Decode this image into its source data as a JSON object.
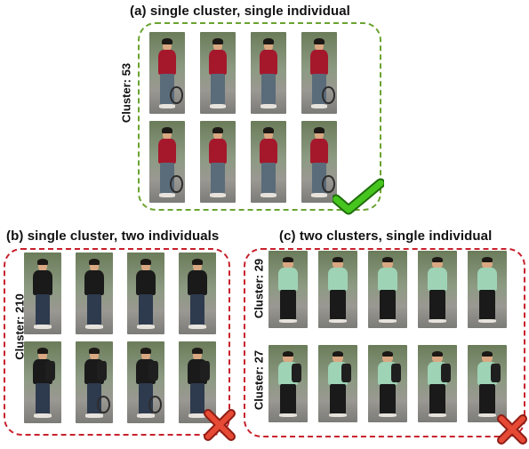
{
  "panels": [
    {
      "title": "(a) single cluster, single individual",
      "status": "correct",
      "rows": [
        {
          "cluster_label": "Cluster: 53",
          "count": 4
        },
        {
          "count": 4
        }
      ],
      "colors": {
        "border": "#6aa331",
        "torso": "#a5182c",
        "legs": "#5a6b7a"
      }
    },
    {
      "title": "(b) single cluster, two individuals",
      "status": "incorrect",
      "rows": [
        {
          "cluster_label": "Cluster: 210",
          "count": 4
        },
        {
          "count": 4
        }
      ],
      "colors": {
        "border": "#c8202c",
        "torso": "#1a1a1a",
        "legs": "#2e3a4e"
      }
    },
    {
      "title": "(c) two clusters, single individual",
      "status": "incorrect",
      "rows": [
        {
          "cluster_label": "Cluster: 29",
          "count": 5
        },
        {
          "cluster_label": "Cluster: 27",
          "count": 5
        }
      ],
      "colors": {
        "border": "#c8202c",
        "torso": "#9fd3b6",
        "legs": "#1a1a1a"
      }
    }
  ],
  "icons": {
    "correct": "checkmark-icon",
    "incorrect": "cross-icon"
  },
  "colors": {
    "check": "#3fbf1b",
    "cross": "#e13a2a"
  }
}
